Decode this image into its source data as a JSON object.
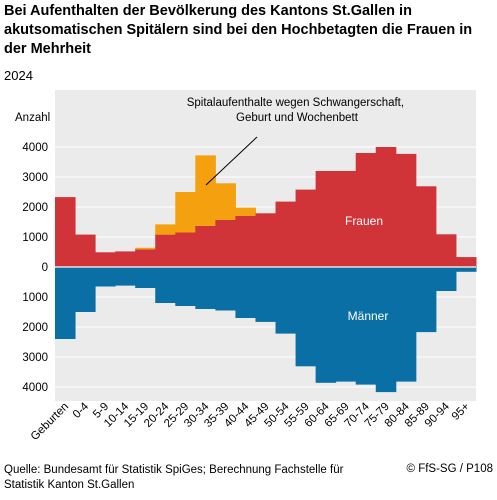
{
  "header": {
    "title": "Bei Aufenthalten der Bevölkerung des Kantons St.Gallen in akutsomatischen Spitälern sind bei den Hochbetagten die Frauen in der Mehrheit",
    "year": "2024"
  },
  "footer": {
    "source": "Quelle: Bundesamt für Statistik SpiGes; Berechnung Fachstelle für Statistik Kanton St.Gallen",
    "copyright": "© FfS-SG / P108"
  },
  "chart_data": {
    "type": "bar",
    "ylabel": "Anzahl",
    "ylim": [
      -4500,
      5000
    ],
    "yticks": [
      4000,
      3000,
      2000,
      1000,
      0,
      -1000,
      -2000,
      -3000,
      -4000
    ],
    "ytick_labels": [
      "4000",
      "3000",
      "2000",
      "1000",
      "0",
      "1000",
      "2000",
      "3000",
      "4000"
    ],
    "grid": true,
    "colors": {
      "frauen": "#d03438",
      "schwanger": "#f5a00e",
      "maenner": "#0a6fa4",
      "background": "#ebebeb"
    },
    "categories": [
      "Geburten",
      "0-4",
      "5-9",
      "10-14",
      "15-19",
      "20-24",
      "25-29",
      "30-34",
      "35-39",
      "40-44",
      "45-49",
      "50-54",
      "55-59",
      "60-64",
      "65-69",
      "70-74",
      "75-79",
      "80-84",
      "85-89",
      "90-94",
      "95+"
    ],
    "series": [
      {
        "name": "Frauen",
        "values": [
          2330,
          1080,
          490,
          520,
          590,
          1080,
          1150,
          1370,
          1570,
          1700,
          1790,
          2180,
          2580,
          3200,
          3200,
          3800,
          4000,
          3770,
          2690,
          1090,
          330
        ]
      },
      {
        "name": "Spitalaufenthalte wegen Schwangerschaft, Geburt und Wochenbett",
        "values": [
          0,
          0,
          0,
          0,
          50,
          340,
          1350,
          2350,
          1220,
          280,
          0,
          0,
          0,
          0,
          0,
          0,
          0,
          0,
          0,
          0,
          0
        ]
      },
      {
        "name": "Männer",
        "values": [
          2400,
          1500,
          650,
          620,
          700,
          1200,
          1300,
          1400,
          1450,
          1700,
          1830,
          2220,
          3310,
          3860,
          3820,
          3920,
          4170,
          3820,
          2170,
          800,
          160
        ]
      }
    ],
    "annotations": {
      "frauen": "Frauen",
      "maenner": "Männer",
      "schwanger": "Spitalaufenthalte wegen Schwangerschaft, Geburt und Wochenbett"
    }
  }
}
